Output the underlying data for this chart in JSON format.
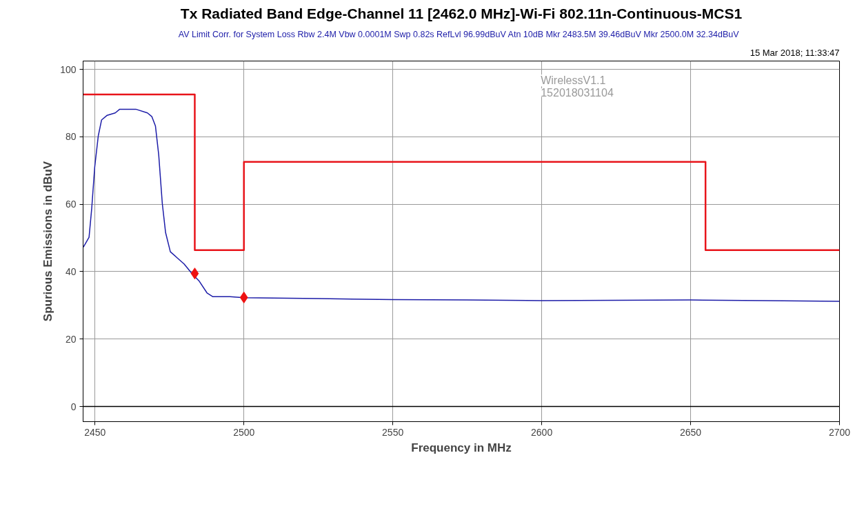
{
  "chart_data": {
    "type": "line",
    "title": "Tx Radiated Band Edge-Channel 11 [2462.0 MHz]-Wi-Fi 802.11n-Continuous-MCS1",
    "subtitle": "AV Limit Corr. for System Loss Rbw 2.4M Vbw 0.0001M Swp 0.82s RefLvl 96.99dBuV Atn 10dB Mkr 2483.5M 39.46dBuV   Mkr 2500.0M 32.34dBuV",
    "xlabel": "Frequency in MHz",
    "ylabel": "Spurious Emissions in dBuV",
    "annotations": [
      "15 Mar 2018; 11:33:47",
      "WirelessV1.1",
      "152018031104"
    ],
    "xlim": [
      2446,
      2700
    ],
    "ylim": [
      -4.5,
      102.5
    ],
    "xticks": [
      2450,
      2500,
      2550,
      2600,
      2650,
      2700
    ],
    "yticks": [
      0,
      20,
      40,
      60,
      80,
      100
    ],
    "grid": true,
    "ref_lines": [
      {
        "axis": "y",
        "value": 0,
        "label": null,
        "color": "#000000"
      }
    ],
    "series": [
      {
        "color": "#1c1ca8",
        "x": [
          2446.1,
          2448,
          2448.9,
          2449.9,
          2451.1,
          2452.2,
          2454.1,
          2456.8,
          2458.3,
          2463.7,
          2467.6,
          2469.1,
          2470.3,
          2471.4,
          2472.6,
          2473.7,
          2475.3,
          2477.6,
          2479.9,
          2482.6,
          2484.9,
          2487.6,
          2489.5,
          2495.3,
          2500,
          2525,
          2550,
          2575,
          2600,
          2625,
          2650,
          2675,
          2700
        ],
        "values": [
          47.3,
          50.2,
          58.8,
          71,
          80.3,
          85,
          86.4,
          87.1,
          88.2,
          88.2,
          87.1,
          86,
          83.2,
          74.6,
          60.2,
          51.6,
          45.9,
          44.1,
          42.3,
          39.4,
          37.3,
          33.7,
          32.6,
          32.6,
          32.3,
          32,
          31.7,
          31.6,
          31.4,
          31.5,
          31.6,
          31.4,
          31.2
        ]
      },
      {
        "type": "step",
        "color": "#e8141a",
        "x": [
          2446,
          2483.5,
          2500,
          2655,
          2700
        ],
        "values": [
          92.6,
          46.4,
          72.6,
          46.4,
          46.4
        ]
      },
      {
        "type": "scatter",
        "color": "#ee1111",
        "marker": "diamond",
        "x": [
          2483.5,
          2500
        ],
        "values": [
          39.46,
          32.34
        ]
      }
    ]
  }
}
